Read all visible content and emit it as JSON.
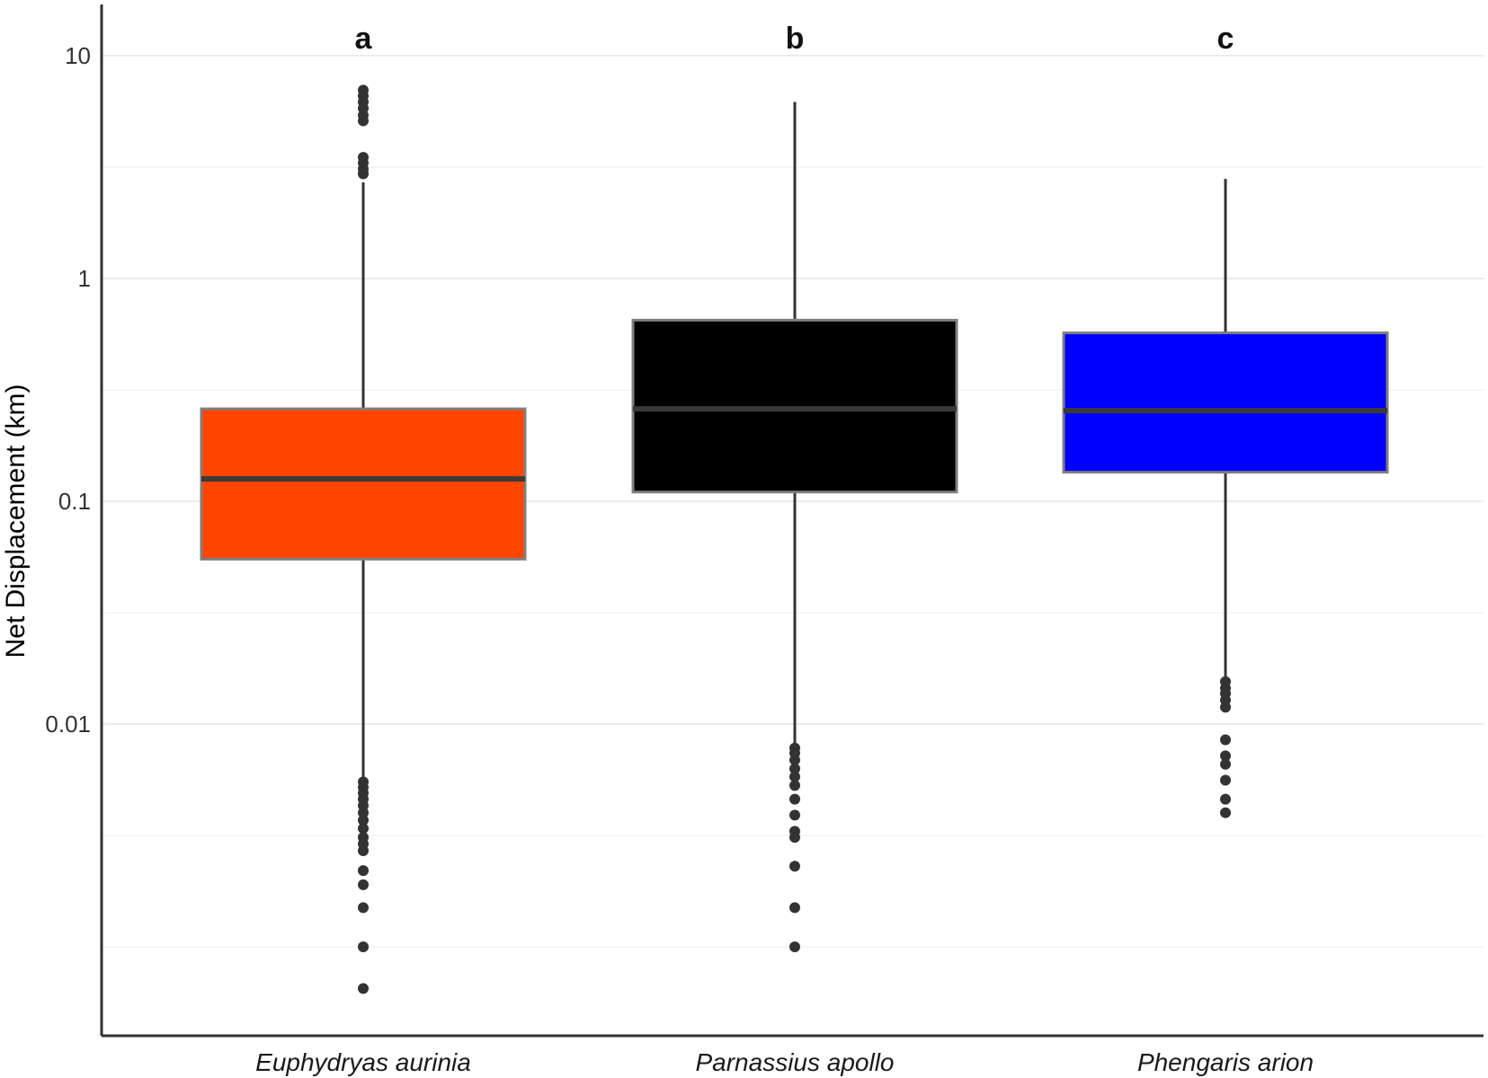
{
  "chart_data": {
    "type": "boxplot",
    "title": "",
    "xlabel": "",
    "ylabel": "Net Displacement (km)",
    "y_scale": "log10",
    "ylim": [
      0.0006,
      20
    ],
    "y_ticks": [
      {
        "value": 10,
        "label": "10"
      },
      {
        "value": 1,
        "label": "1"
      },
      {
        "value": 0.1,
        "label": "0.1"
      },
      {
        "value": 0.01,
        "label": "0.01"
      }
    ],
    "y_minor_gridlines": [
      3.16,
      0.316,
      0.0316,
      0.00316,
      0.001
    ],
    "grid": true,
    "legend": "none",
    "categories": [
      "Euphydryas aurinia",
      "Parnassius apollo",
      "Phengaris arion"
    ],
    "group_letters": [
      "a",
      "b",
      "c"
    ],
    "colors": [
      "#ff4500",
      "#000000",
      "#0000ff"
    ],
    "boxes": [
      {
        "q1": 0.055,
        "median": 0.126,
        "q3": 0.26,
        "whisker_low": 0.0055,
        "whisker_high": 2.7,
        "outliers": [
          7.0,
          6.6,
          6.2,
          5.8,
          5.4,
          5.1,
          3.5,
          3.3,
          3.1,
          2.95,
          0.0055,
          0.0052,
          0.0049,
          0.0046,
          0.0043,
          0.004,
          0.0037,
          0.0034,
          0.0031,
          0.0029,
          0.0027,
          0.0022,
          0.0019,
          0.0015,
          0.001,
          0.00065
        ]
      },
      {
        "q1": 0.11,
        "median": 0.26,
        "q3": 0.65,
        "whisker_low": 0.0078,
        "whisker_high": 6.2,
        "outliers": [
          0.0078,
          0.0074,
          0.0069,
          0.0063,
          0.0058,
          0.0053,
          0.0046,
          0.0039,
          0.0033,
          0.0031,
          0.0023,
          0.0015,
          0.001
        ]
      },
      {
        "q1": 0.135,
        "median": 0.255,
        "q3": 0.57,
        "whisker_low": 0.0155,
        "whisker_high": 2.8,
        "outliers": [
          0.0155,
          0.0145,
          0.0137,
          0.0128,
          0.0119,
          0.0085,
          0.0072,
          0.0066,
          0.0056,
          0.0046,
          0.004
        ]
      }
    ]
  }
}
